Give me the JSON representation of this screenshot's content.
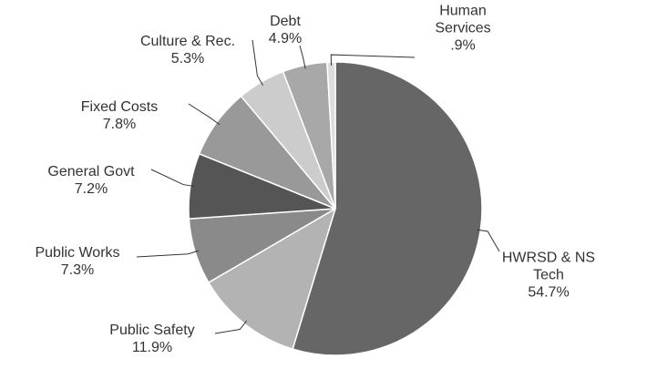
{
  "chart_data": {
    "type": "pie",
    "categories": [
      "HWRSD & NS Tech",
      "Public Safety",
      "Public Works",
      "General Govt",
      "Fixed Costs",
      "Culture & Rec.",
      "Debt",
      "Human Services"
    ],
    "values": [
      54.7,
      11.9,
      7.3,
      7.2,
      7.8,
      5.3,
      4.9,
      0.9
    ],
    "value_labels": [
      "54.7%",
      "11.9%",
      "7.3%",
      "7.2%",
      "7.8%",
      "5.3%",
      "4.9%",
      ".9%"
    ],
    "colors": [
      "#666666",
      "#b3b3b3",
      "#8a8a8a",
      "#555555",
      "#999999",
      "#cccccc",
      "#a8a8a8",
      "#dddddd"
    ]
  }
}
